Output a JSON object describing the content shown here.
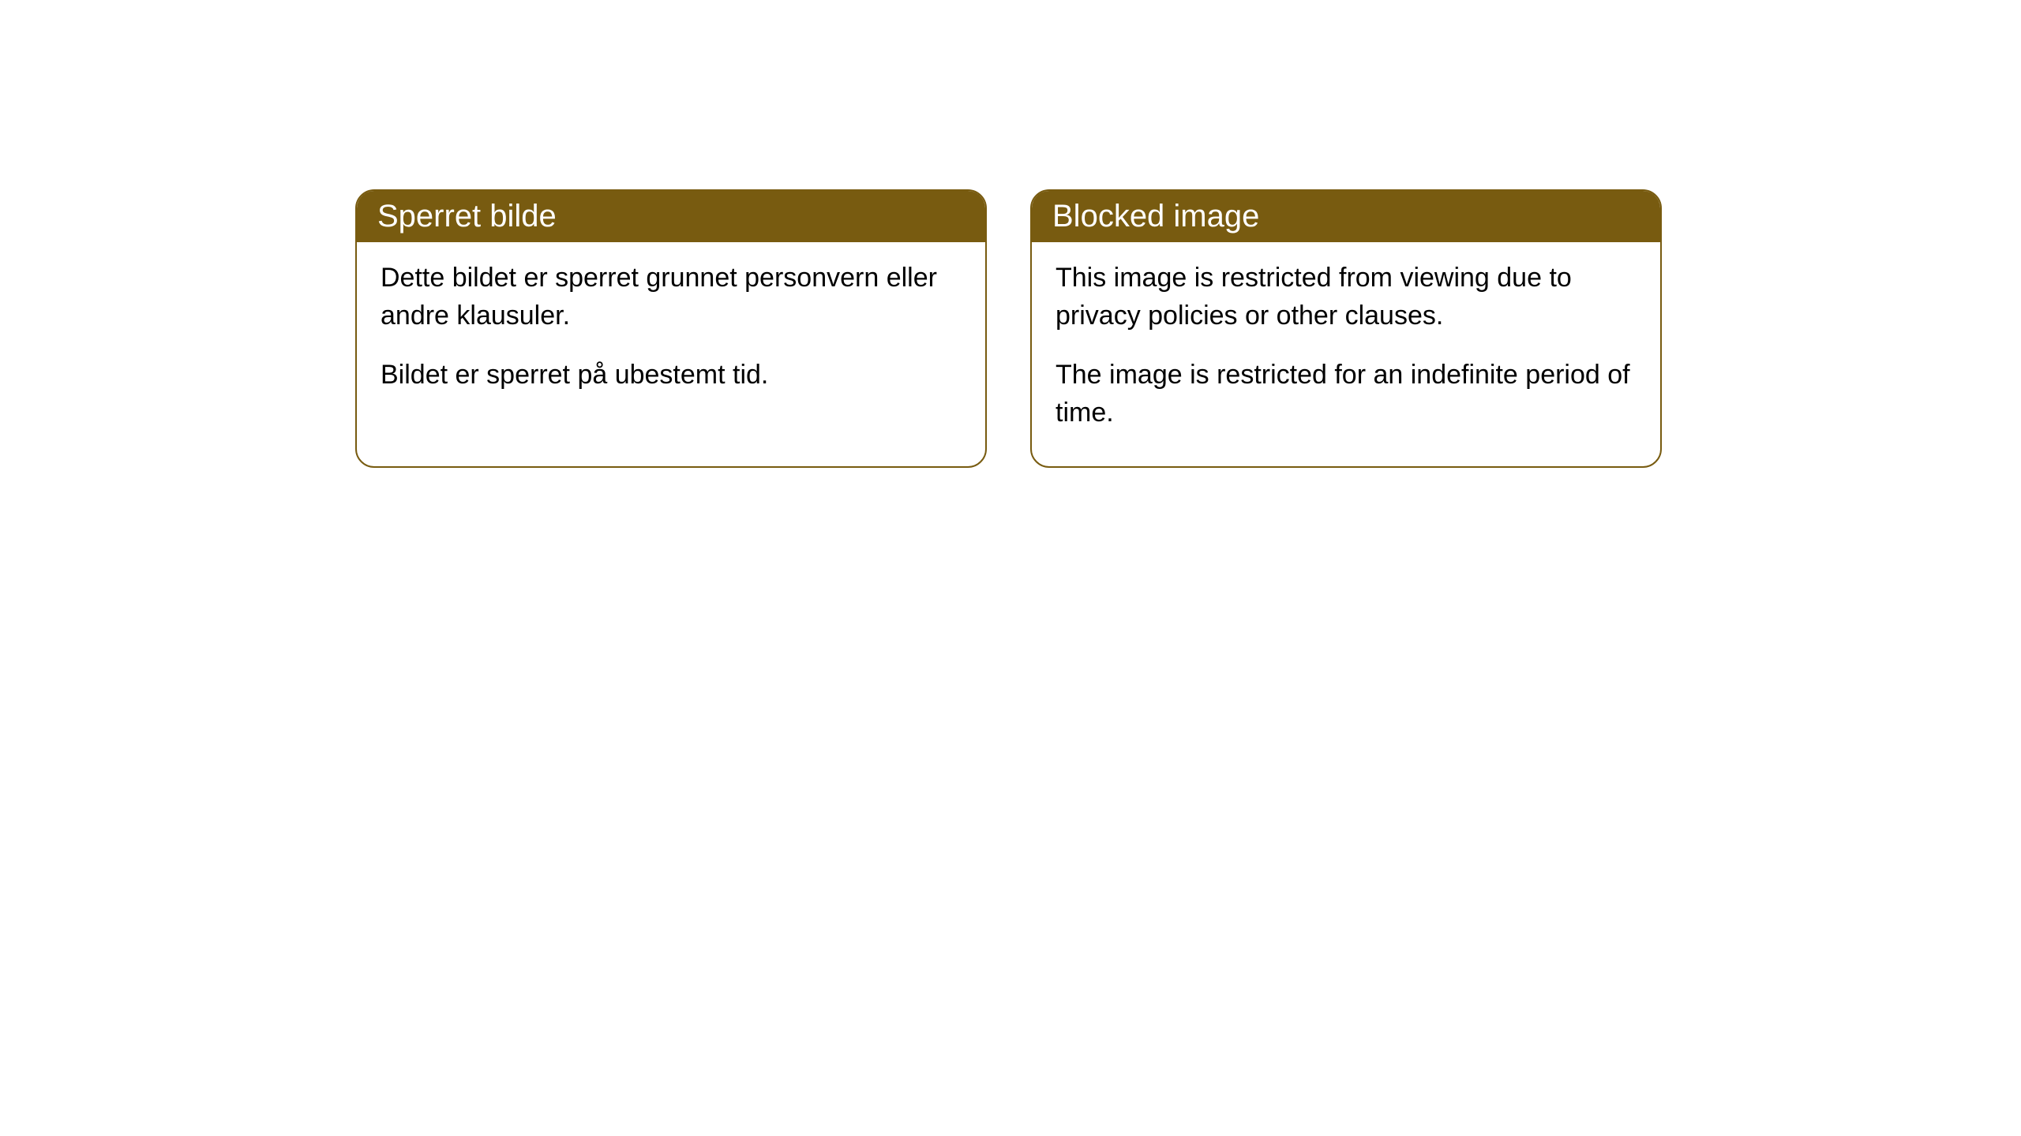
{
  "cards": [
    {
      "title": "Sperret bilde",
      "paragraph1": "Dette bildet er sperret grunnet personvern eller andre klausuler.",
      "paragraph2": "Bildet er sperret på ubestemt tid."
    },
    {
      "title": "Blocked image",
      "paragraph1": "This image is restricted from viewing due to privacy policies or other clauses.",
      "paragraph2": "The image is restricted for an indefinite period of time."
    }
  ],
  "styling": {
    "header_bg_color": "#785b10",
    "header_text_color": "#ffffff",
    "border_color": "#785b10",
    "body_bg_color": "#ffffff",
    "body_text_color": "#000000",
    "border_radius": "24px",
    "header_fontsize": 40,
    "body_fontsize": 34
  }
}
